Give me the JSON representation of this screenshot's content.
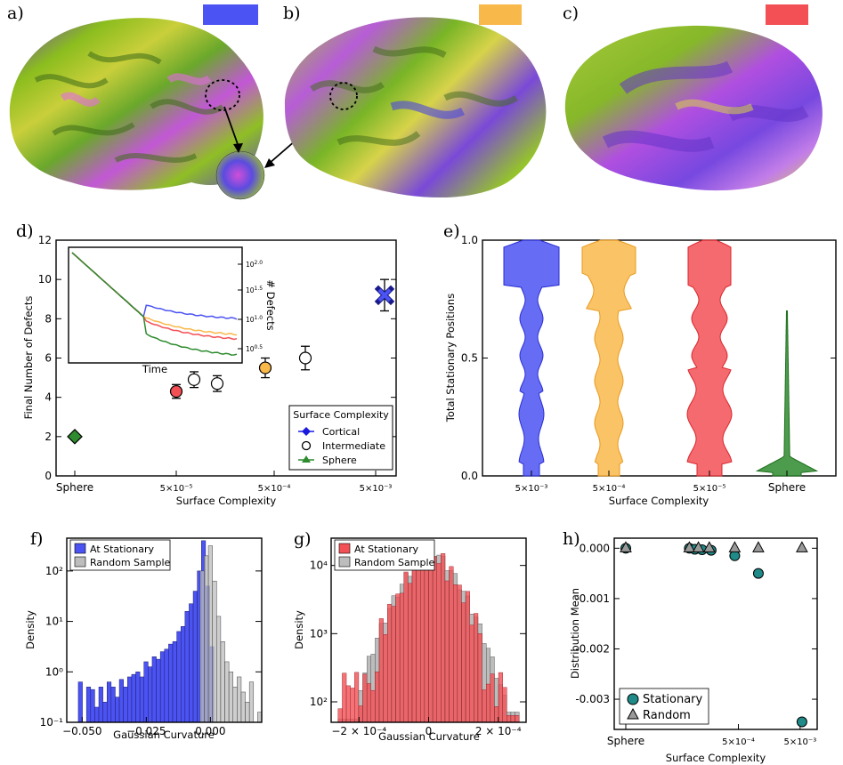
{
  "panels": {
    "a": "a)",
    "b": "b)",
    "c": "c)",
    "d": "d)",
    "e": "e)",
    "f": "f)",
    "g": "g)",
    "h": "h)"
  },
  "colors": {
    "cortical": "#4b53f2",
    "intermediate": "#f9b84a",
    "high": "#f25055",
    "sphere": "#2e8b2e",
    "teal": "#1f8a87",
    "grey": "#9a9a9a"
  },
  "chart_data": [
    {
      "id": "d",
      "type": "scatter",
      "xlabel": "Surface Complexity",
      "ylabel": "Final Number of Defects",
      "xticks": [
        "Sphere",
        "5×10⁻⁵",
        "5×10⁻⁴",
        "5×10⁻³"
      ],
      "ylim": [
        0,
        12
      ],
      "yticks": [
        0,
        2,
        4,
        6,
        8,
        10,
        12
      ],
      "legend": {
        "title": "Surface Complexity",
        "entries": [
          "Cortical",
          "Intermediate",
          "Sphere"
        ],
        "placement": "bottom-right"
      },
      "points": [
        {
          "x": "Sphere",
          "y": 2.0,
          "err": 0.1,
          "marker": "diamond",
          "color": "sphere"
        },
        {
          "x": "5×10⁻⁵",
          "y": 4.3,
          "err": 0.35,
          "marker": "circle",
          "color": "high"
        },
        {
          "x": "6.5×10⁻⁵",
          "y": 4.9,
          "err": 0.4,
          "marker": "open",
          "color": "none"
        },
        {
          "x": "1.3×10⁻⁴",
          "y": 4.7,
          "err": 0.4,
          "marker": "open",
          "color": "none"
        },
        {
          "x": "4.5×10⁻⁴",
          "y": 5.5,
          "err": 0.5,
          "marker": "circle",
          "color": "intermediate"
        },
        {
          "x": "1.2×10⁻³",
          "y": 6.0,
          "err": 0.6,
          "marker": "open",
          "color": "none"
        },
        {
          "x": "6.5×10⁻³",
          "y": 9.2,
          "err": 0.8,
          "marker": "cross",
          "color": "cortical"
        }
      ],
      "inset": {
        "type": "line",
        "xlabel": "Time",
        "ylabel": "# Defects",
        "yticks": [
          "10^{0.5}",
          "10^{1.0}",
          "10^{1.5}",
          "10^{2.0}"
        ],
        "series": [
          {
            "color": "cortical",
            "end": 1.0
          },
          {
            "color": "intermediate",
            "end": 0.8
          },
          {
            "color": "high",
            "end": 0.7
          },
          {
            "color": "sphere",
            "end": 0.3
          }
        ]
      }
    },
    {
      "id": "e",
      "type": "violin",
      "xlabel": "Surface Complexity",
      "ylabel": "Total Stationary Positions",
      "categories": [
        "5×10⁻³",
        "5×10⁻⁴",
        "5×10⁻⁵",
        "Sphere"
      ],
      "ylim": [
        0,
        1
      ],
      "yticks": [
        "0.0",
        "0.5",
        "1.0"
      ]
    },
    {
      "id": "f",
      "type": "bar",
      "xlabel": "Gaussian Curvature",
      "ylabel": "Density",
      "xticks": [
        "−0.050",
        "−0.025",
        "0.000"
      ],
      "yticks": [
        "10⁻¹",
        "10⁰",
        "10¹",
        "10²"
      ],
      "legend": {
        "entries": [
          "At Stationary",
          "Random Sample"
        ],
        "placement": "top-left"
      }
    },
    {
      "id": "g",
      "type": "bar",
      "xlabel": "Gaussian Curvature",
      "ylabel": "Density",
      "xticks": [
        "−2 × 10⁻⁴",
        "0",
        "2 × 10⁻⁴"
      ],
      "yticks": [
        "10²",
        "10³",
        "10⁴"
      ],
      "legend": {
        "entries": [
          "At Stationary",
          "Random Sample"
        ],
        "placement": "top-left"
      }
    },
    {
      "id": "h",
      "type": "scatter",
      "xlabel": "Surface Complexity",
      "ylabel": "Distribution Mean",
      "xticks": [
        "Sphere",
        "5×10⁻⁴",
        "5×10⁻³"
      ],
      "yticks": [
        "0.000",
        "-0.001",
        "-0.002",
        "-0.003"
      ],
      "ylim": [
        -0.0036,
        0.0002
      ],
      "legend": {
        "entries": [
          "Stationary",
          "Random"
        ],
        "placement": "bottom-left"
      },
      "stationary": [
        {
          "x": 0.0,
          "y": 0.0
        },
        {
          "x": 0.35,
          "y": 0.0
        },
        {
          "x": 0.38,
          "y": -2e-05
        },
        {
          "x": 0.42,
          "y": -3e-05
        },
        {
          "x": 0.47,
          "y": -4e-05
        },
        {
          "x": 0.6,
          "y": -0.00015
        },
        {
          "x": 0.73,
          "y": -0.0005
        },
        {
          "x": 0.97,
          "y": -0.00345
        }
      ],
      "random": [
        {
          "x": 0.0,
          "y": 0.0
        },
        {
          "x": 0.35,
          "y": 0.0
        },
        {
          "x": 0.4,
          "y": 0.0
        },
        {
          "x": 0.46,
          "y": 0.0
        },
        {
          "x": 0.6,
          "y": 0.0
        },
        {
          "x": 0.73,
          "y": 0.0
        },
        {
          "x": 0.97,
          "y": 0.0
        }
      ]
    }
  ]
}
